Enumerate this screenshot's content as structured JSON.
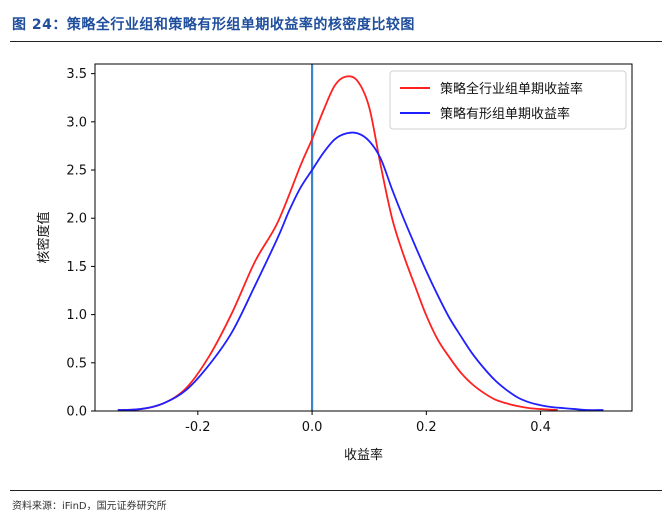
{
  "figure": {
    "title": "图 24：策略全行业组和策略有形组单期收益率的核密度比较图",
    "source": "资料来源：iFinD，国元证券研究所"
  },
  "chart_data": {
    "type": "line",
    "title": "",
    "xlabel": "收益率",
    "ylabel": "核密度值",
    "xlim": [
      -0.38,
      0.56
    ],
    "ylim": [
      0,
      3.6
    ],
    "xticks": [
      -0.2,
      0.0,
      0.2,
      0.4
    ],
    "yticks": [
      0.0,
      0.5,
      1.0,
      1.5,
      2.0,
      2.5,
      3.0,
      3.5
    ],
    "grid": false,
    "legend": "top-right",
    "vline": {
      "x": 0.0,
      "color": "#3a86c8"
    },
    "series": [
      {
        "name": "策略全行业组单期收益率",
        "color": "#ff2020",
        "points": [
          [
            -0.34,
            0.01
          ],
          [
            -0.3,
            0.02
          ],
          [
            -0.26,
            0.08
          ],
          [
            -0.22,
            0.24
          ],
          [
            -0.18,
            0.57
          ],
          [
            -0.14,
            1.02
          ],
          [
            -0.1,
            1.55
          ],
          [
            -0.06,
            1.96
          ],
          [
            -0.02,
            2.55
          ],
          [
            0.0,
            2.82
          ],
          [
            0.02,
            3.12
          ],
          [
            0.04,
            3.38
          ],
          [
            0.06,
            3.47
          ],
          [
            0.08,
            3.42
          ],
          [
            0.1,
            3.15
          ],
          [
            0.12,
            2.55
          ],
          [
            0.14,
            2.0
          ],
          [
            0.16,
            1.62
          ],
          [
            0.18,
            1.3
          ],
          [
            0.2,
            0.99
          ],
          [
            0.22,
            0.74
          ],
          [
            0.24,
            0.56
          ],
          [
            0.26,
            0.4
          ],
          [
            0.28,
            0.28
          ],
          [
            0.3,
            0.19
          ],
          [
            0.32,
            0.12
          ],
          [
            0.34,
            0.08
          ],
          [
            0.36,
            0.05
          ],
          [
            0.38,
            0.03
          ],
          [
            0.4,
            0.02
          ],
          [
            0.43,
            0.01
          ]
        ]
      },
      {
        "name": "策略有形组单期收益率",
        "color": "#2020ff",
        "points": [
          [
            -0.34,
            0.01
          ],
          [
            -0.3,
            0.02
          ],
          [
            -0.26,
            0.08
          ],
          [
            -0.22,
            0.22
          ],
          [
            -0.18,
            0.48
          ],
          [
            -0.14,
            0.82
          ],
          [
            -0.1,
            1.3
          ],
          [
            -0.06,
            1.8
          ],
          [
            -0.04,
            2.08
          ],
          [
            -0.02,
            2.32
          ],
          [
            0.0,
            2.5
          ],
          [
            0.02,
            2.68
          ],
          [
            0.04,
            2.82
          ],
          [
            0.06,
            2.88
          ],
          [
            0.08,
            2.88
          ],
          [
            0.1,
            2.8
          ],
          [
            0.12,
            2.62
          ],
          [
            0.14,
            2.3
          ],
          [
            0.16,
            2.0
          ],
          [
            0.18,
            1.72
          ],
          [
            0.2,
            1.45
          ],
          [
            0.22,
            1.2
          ],
          [
            0.24,
            0.97
          ],
          [
            0.26,
            0.78
          ],
          [
            0.28,
            0.6
          ],
          [
            0.3,
            0.45
          ],
          [
            0.32,
            0.32
          ],
          [
            0.34,
            0.22
          ],
          [
            0.36,
            0.14
          ],
          [
            0.38,
            0.09
          ],
          [
            0.4,
            0.06
          ],
          [
            0.42,
            0.04
          ],
          [
            0.44,
            0.03
          ],
          [
            0.46,
            0.02
          ],
          [
            0.48,
            0.01
          ],
          [
            0.51,
            0.01
          ]
        ]
      }
    ]
  }
}
